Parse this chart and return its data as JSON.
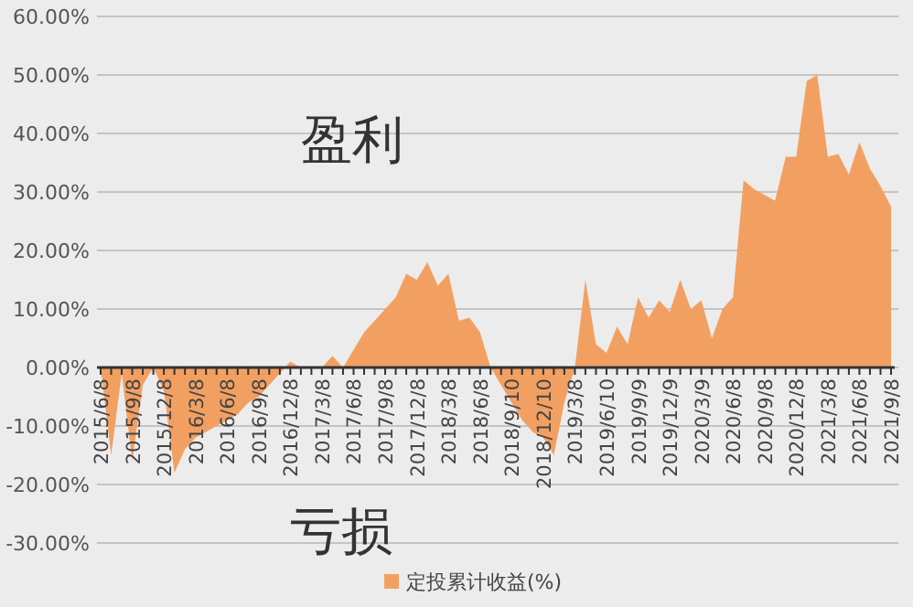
{
  "chart_data": {
    "type": "area",
    "categories": [
      "2015/6/8",
      null,
      null,
      "2015/9/8",
      null,
      null,
      "2015/12/8",
      null,
      null,
      "2016/3/8",
      null,
      null,
      "2016/6/8",
      null,
      null,
      "2016/9/8",
      null,
      null,
      "2016/12/8",
      null,
      null,
      "2017/3/8",
      null,
      null,
      "2017/6/8",
      null,
      null,
      "2017/9/8",
      null,
      null,
      "2017/12/8",
      null,
      null,
      "2018/3/8",
      null,
      null,
      "2018/6/8",
      null,
      null,
      "2018/9/10",
      null,
      null,
      "2018/12/10",
      null,
      null,
      "2019/3/8",
      null,
      null,
      "2019/6/10",
      null,
      null,
      "2019/9/9",
      null,
      null,
      "2019/12/9",
      null,
      null,
      "2020/3/9",
      null,
      null,
      "2020/6/8",
      null,
      null,
      "2020/9/8",
      null,
      null,
      "2020/12/8",
      null,
      null,
      "2021/3/8",
      null,
      null,
      "2021/6/8",
      null,
      null,
      "2021/9/8"
    ],
    "series": [
      {
        "name": "定投累计收益(%)",
        "color": "#f2a062",
        "values": [
          0,
          -15,
          -1,
          -16,
          -3,
          0,
          -4,
          -18,
          -14,
          -12,
          -11,
          -10,
          -9,
          -8,
          -6,
          -5,
          -3,
          -1,
          1,
          0,
          0,
          0,
          2,
          0,
          3,
          6,
          8,
          10,
          12,
          16,
          15,
          18,
          14,
          16,
          8,
          8.5,
          6,
          0,
          -3,
          -6,
          -9,
          -11,
          -12,
          -15,
          -6,
          0,
          15,
          4,
          2.5,
          7,
          4,
          12,
          8.5,
          11.5,
          9.5,
          15,
          10,
          11.5,
          5,
          10,
          12,
          32,
          30.5,
          29.5,
          28.5,
          36,
          36,
          49,
          50,
          36,
          36.5,
          33,
          38.5,
          34,
          31,
          27.5
        ]
      }
    ],
    "ylim": [
      -30,
      60
    ],
    "yticks": [
      {
        "value": -30,
        "label": "-30.00%"
      },
      {
        "value": -20,
        "label": "-20.00%"
      },
      {
        "value": -10,
        "label": "-10.00%"
      },
      {
        "value": 0,
        "label": "0.00%"
      },
      {
        "value": 10,
        "label": "10.00%"
      },
      {
        "value": 20,
        "label": "20.00%"
      },
      {
        "value": 30,
        "label": "30.00%"
      },
      {
        "value": 40,
        "label": "40.00%"
      },
      {
        "value": 50,
        "label": "50.00%"
      },
      {
        "value": 60,
        "label": "60.00%"
      }
    ],
    "grid": "y",
    "legend": "bottom",
    "annotations": [
      "盈利",
      "亏损"
    ]
  }
}
